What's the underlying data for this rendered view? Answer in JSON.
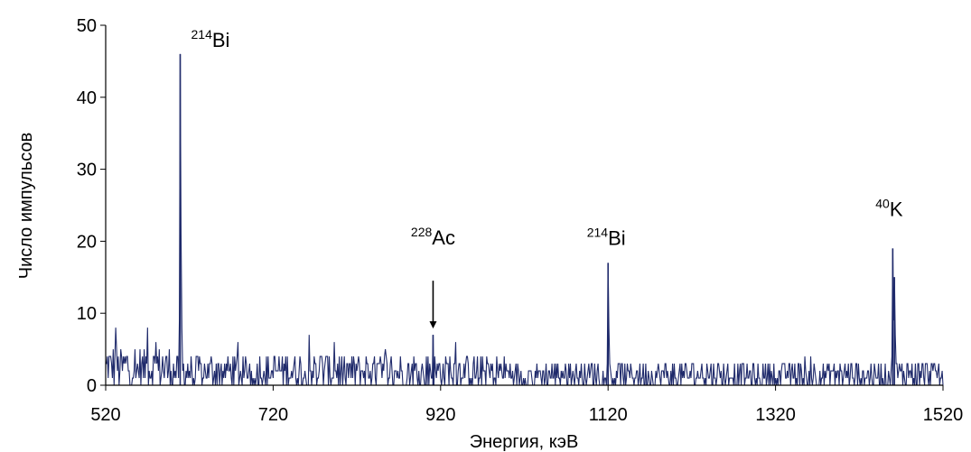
{
  "chart_data": {
    "type": "line",
    "xlabel": "Энергия, кэВ",
    "ylabel": "Число импульсов",
    "xlim": [
      520,
      1520
    ],
    "ylim": [
      0,
      50
    ],
    "x_ticks": [
      520,
      720,
      920,
      1120,
      1320,
      1520
    ],
    "y_ticks": [
      0,
      10,
      20,
      30,
      40,
      50
    ],
    "grid": false,
    "legend": "none",
    "line_color": "#1f2a6b",
    "noise_peaks": [
      {
        "x": 532,
        "y": 8
      },
      {
        "x": 570,
        "y": 8
      },
      {
        "x": 580,
        "y": 6
      },
      {
        "x": 678,
        "y": 6
      },
      {
        "x": 763,
        "y": 7
      },
      {
        "x": 793,
        "y": 6
      },
      {
        "x": 854,
        "y": 5
      },
      {
        "x": 938,
        "y": 6
      },
      {
        "x": 1355,
        "y": 4
      },
      {
        "x": 1362,
        "y": 4
      }
    ],
    "peaks": [
      {
        "x": 609,
        "y": 46,
        "label": "Bi",
        "isotope_mass": "214",
        "arrow": false
      },
      {
        "x": 911,
        "y": 7,
        "label": "Ac",
        "isotope_mass": "228",
        "arrow": true
      },
      {
        "x": 1120,
        "y": 17,
        "label": "Bi",
        "isotope_mass": "214",
        "arrow": false
      },
      {
        "x": 1460,
        "y": 19,
        "label": "K",
        "isotope_mass": "40",
        "arrow": false
      },
      {
        "x": 1462,
        "y": 15,
        "label": "",
        "isotope_mass": "",
        "arrow": false
      }
    ]
  }
}
